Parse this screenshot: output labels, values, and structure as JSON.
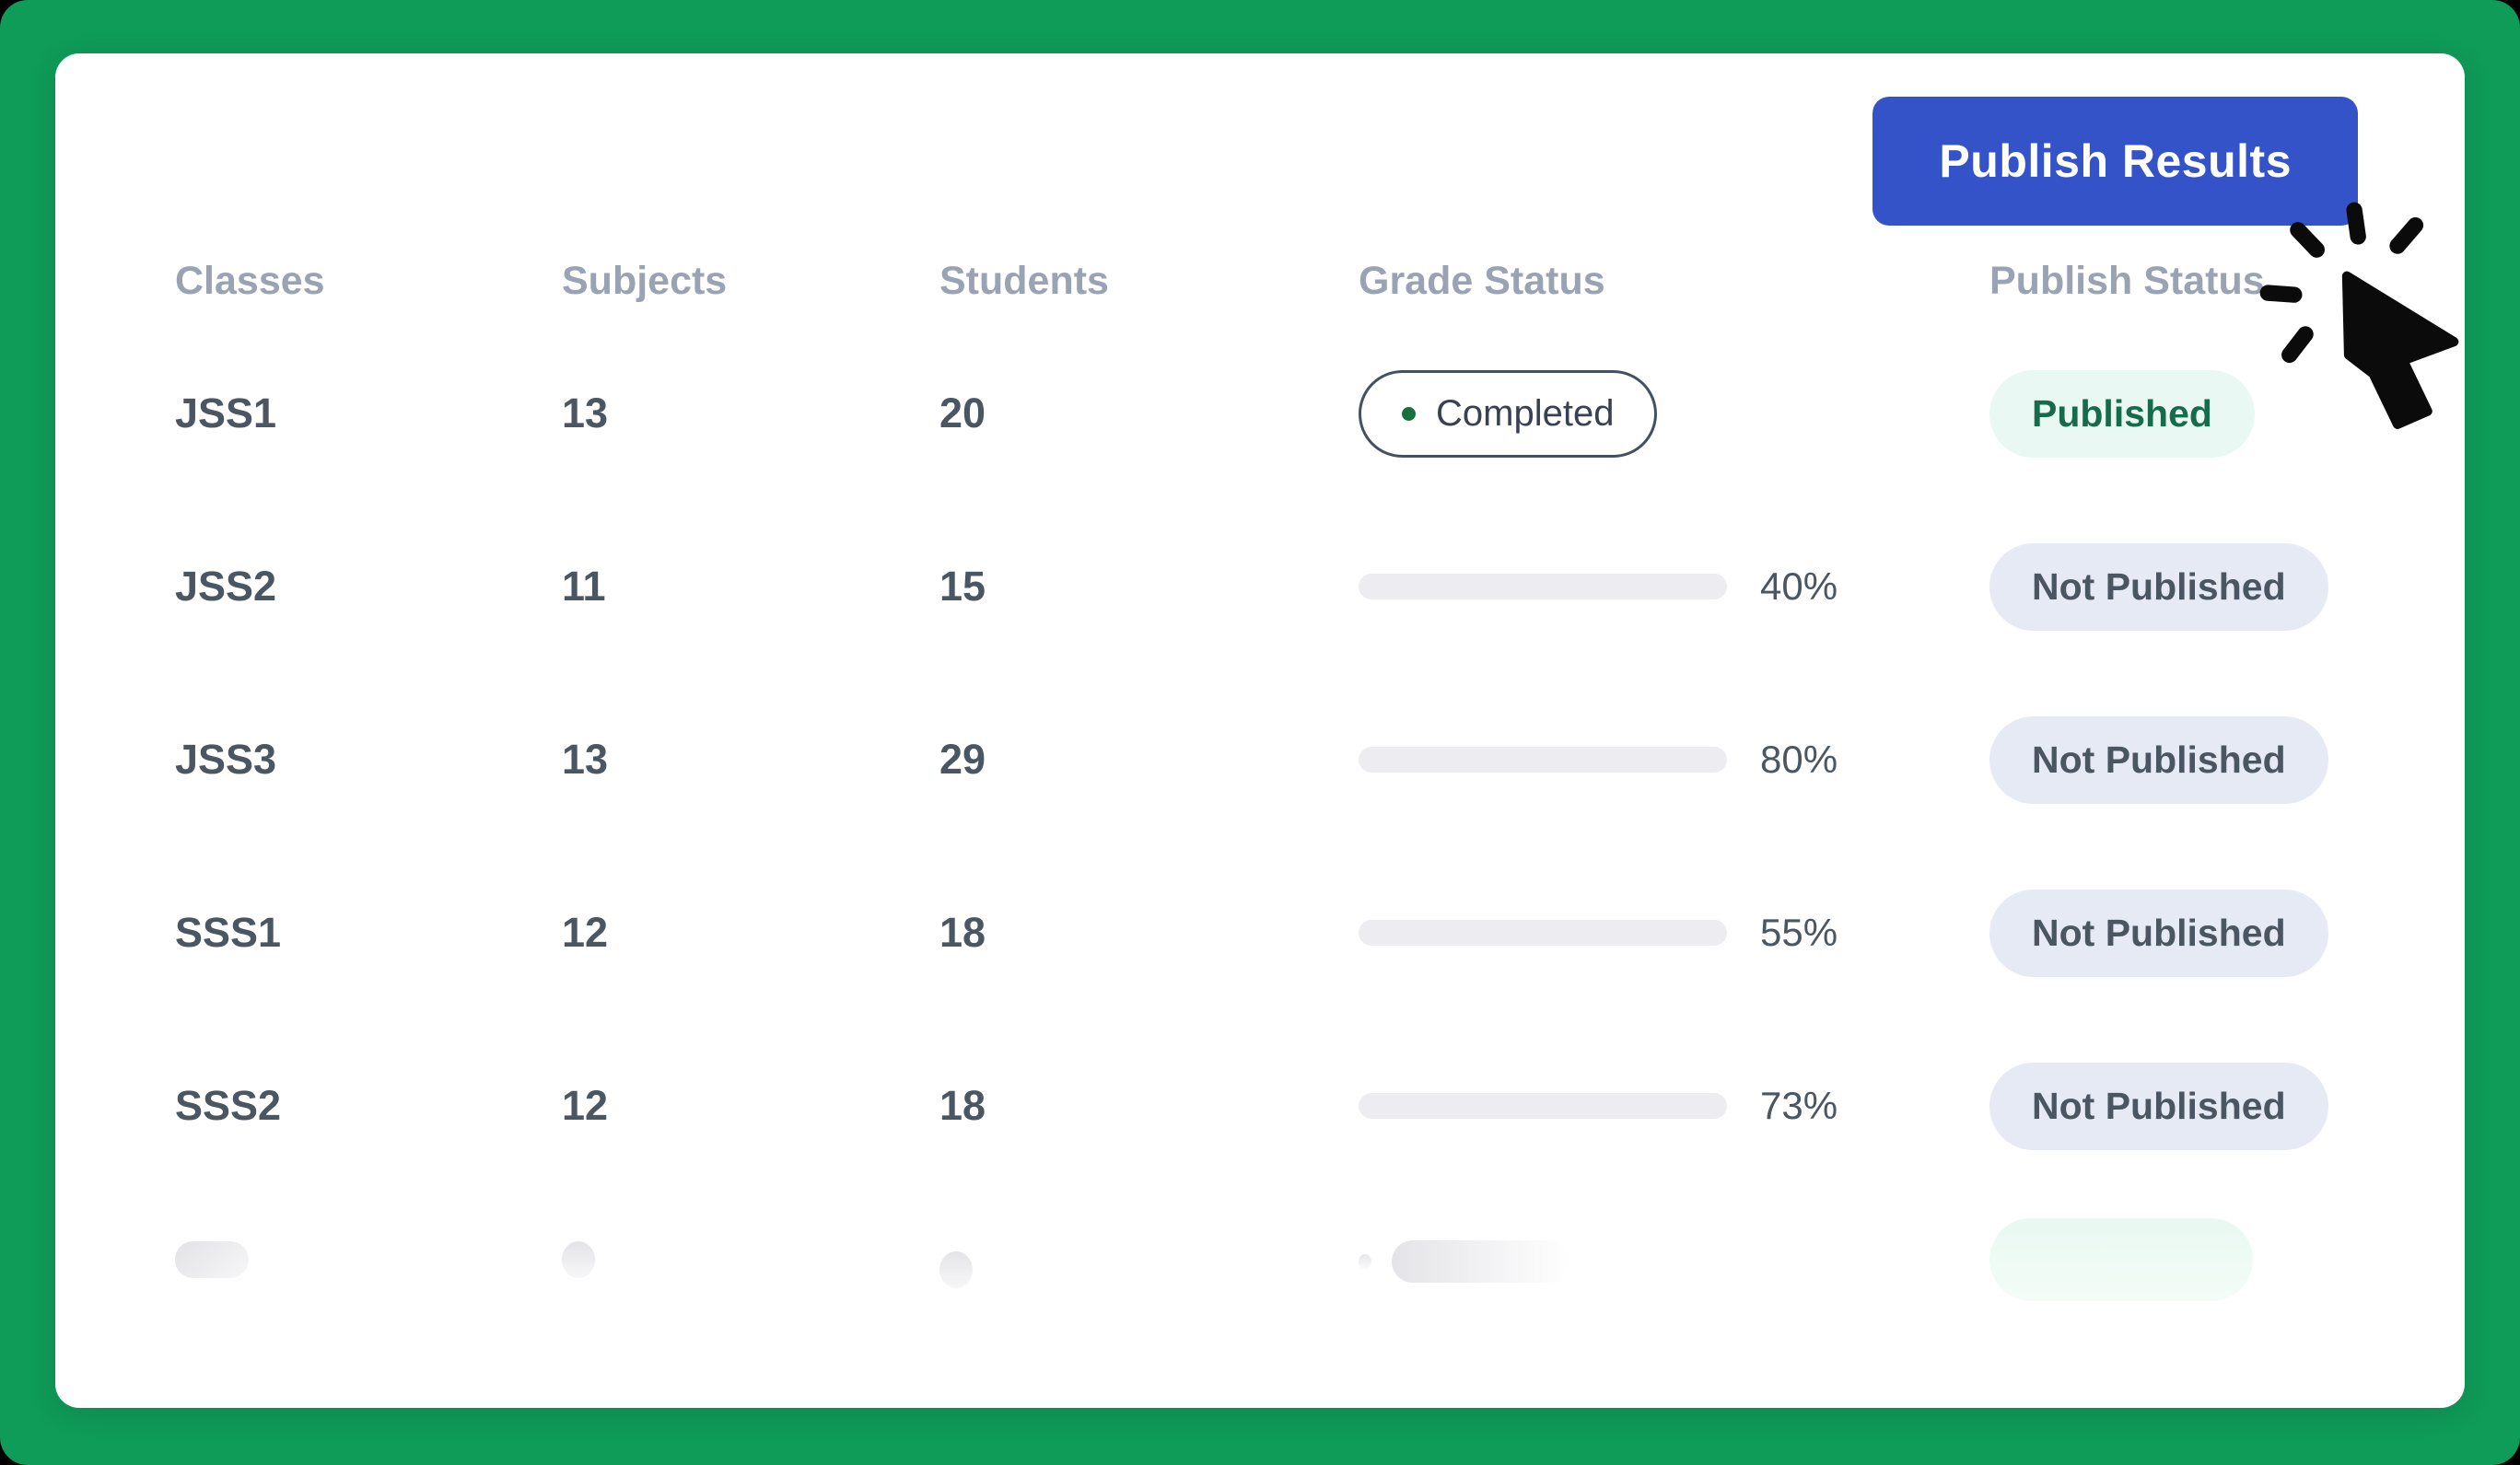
{
  "colors": {
    "frame_green": "#0f9b58",
    "card_white": "#ffffff",
    "button_blue": "#3453c9",
    "header_gray": "#9aa3b4",
    "row_text": "#4b5663",
    "progress_fill_orange": "#b05315",
    "progress_track": "#ededf1",
    "published_bg": "#e9f8f2",
    "published_text": "#176a4b",
    "not_published_bg": "#e6eaf4",
    "not_published_text": "#4b5663",
    "completed_dot_green": "#17703f"
  },
  "toolbar": {
    "publish_button_label": "Publish Results"
  },
  "table": {
    "columns": [
      "Classes",
      "Subjects",
      "Students",
      "Grade Status",
      "Publish Status"
    ],
    "rows": [
      {
        "class": "JSS1",
        "subjects": "13",
        "students": "20",
        "grade_status": {
          "type": "badge",
          "label": "Completed"
        },
        "publish_status": {
          "label": "Published",
          "published": true
        }
      },
      {
        "class": "JSS2",
        "subjects": "11",
        "students": "15",
        "grade_status": {
          "type": "progress",
          "percent": 40,
          "label": "40%"
        },
        "publish_status": {
          "label": "Not Published",
          "published": false
        }
      },
      {
        "class": "JSS3",
        "subjects": "13",
        "students": "29",
        "grade_status": {
          "type": "progress",
          "percent": 80,
          "label": "80%"
        },
        "publish_status": {
          "label": "Not Published",
          "published": false
        }
      },
      {
        "class": "SSS1",
        "subjects": "12",
        "students": "18",
        "grade_status": {
          "type": "progress",
          "percent": 55,
          "label": "55%"
        },
        "publish_status": {
          "label": "Not Published",
          "published": false
        }
      },
      {
        "class": "SSS2",
        "subjects": "12",
        "students": "18",
        "grade_status": {
          "type": "progress",
          "percent": 73,
          "label": "73%"
        },
        "publish_status": {
          "label": "Not Published",
          "published": false
        }
      }
    ],
    "skeleton_row": {
      "visible": true
    }
  }
}
